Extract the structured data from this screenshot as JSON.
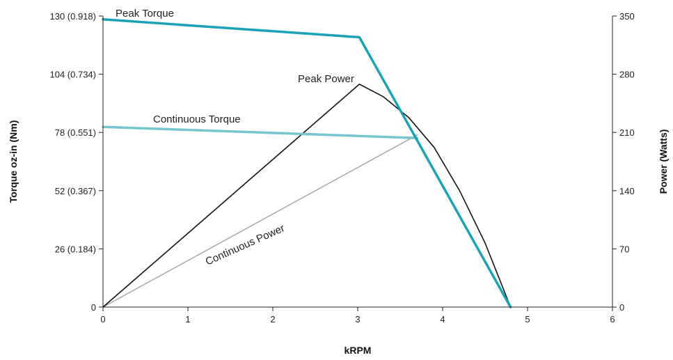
{
  "chart_data": {
    "type": "line",
    "xlabel": "kRPM",
    "ylabel_left": "Torque oz-in (Nm)",
    "ylabel_right": "Power (Watts)",
    "xlim": [
      0,
      6
    ],
    "ylim_left": [
      0,
      130
    ],
    "ylim_right": [
      0,
      350
    ],
    "grid": false,
    "x_ticks": [
      {
        "value": 0,
        "label": "0"
      },
      {
        "value": 1,
        "label": "1"
      },
      {
        "value": 2,
        "label": "2"
      },
      {
        "value": 3,
        "label": "3"
      },
      {
        "value": 4,
        "label": "4"
      },
      {
        "value": 5,
        "label": "5"
      },
      {
        "value": 6,
        "label": "6"
      }
    ],
    "y_left_ticks": [
      {
        "value": 0,
        "label": "0"
      },
      {
        "value": 26,
        "label": "26 (0.184)"
      },
      {
        "value": 52,
        "label": "52 (0.367)"
      },
      {
        "value": 78,
        "label": "78 (0.551)"
      },
      {
        "value": 104,
        "label": "104 (0.734)"
      },
      {
        "value": 130,
        "label": "130 (0.918)"
      }
    ],
    "y_right_ticks": [
      {
        "value": 0,
        "label": "0"
      },
      {
        "value": 70,
        "label": "70"
      },
      {
        "value": 140,
        "label": "140"
      },
      {
        "value": 210,
        "label": "210"
      },
      {
        "value": 280,
        "label": "280"
      },
      {
        "value": 350,
        "label": "350"
      }
    ],
    "series": [
      {
        "name": "Peak Torque",
        "axis": "left",
        "color": "#1aa3b4",
        "x": [
          0,
          3.02,
          4.8
        ],
        "y": [
          128.5,
          120.5,
          0
        ]
      },
      {
        "name": "Continuous Torque",
        "axis": "left",
        "color": "#76c6d0",
        "x": [
          0,
          3.7
        ],
        "y": [
          80.5,
          75.5
        ]
      },
      {
        "name": "Peak Power",
        "axis": "right",
        "color": "#111111",
        "x": [
          0,
          3.02,
          3.3,
          3.6,
          3.9,
          4.2,
          4.5,
          4.8
        ],
        "y": [
          0,
          268,
          253,
          228,
          192,
          140,
          77,
          0
        ]
      },
      {
        "name": "Continuous Power",
        "axis": "right",
        "color": "#a8a8a8",
        "x": [
          0,
          3.7
        ],
        "y": [
          0,
          207
        ]
      }
    ]
  }
}
